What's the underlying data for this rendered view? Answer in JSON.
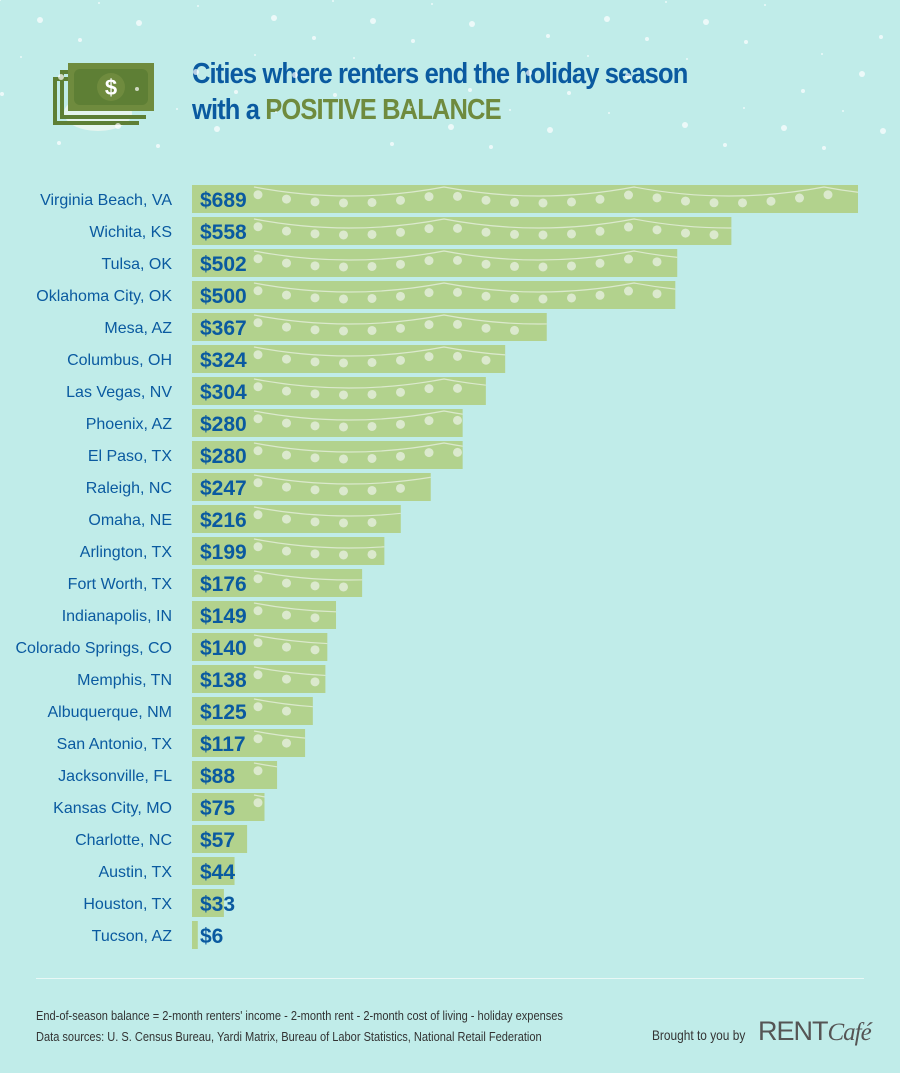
{
  "header": {
    "title_line1": "Cities where renters end the holiday season",
    "title_line2_prefix": "with a ",
    "title_highlight": "POSITIVE BALANCE"
  },
  "chart_data": {
    "type": "bar",
    "orientation": "horizontal",
    "title": "Cities where renters end the holiday season with a POSITIVE BALANCE",
    "categories": [
      "Virginia Beach, VA",
      "Wichita, KS",
      "Tulsa, OK",
      "Oklahoma City, OK",
      "Mesa, AZ",
      "Columbus, OH",
      "Las Vegas, NV",
      "Phoenix, AZ",
      "El Paso, TX",
      "Raleigh, NC",
      "Omaha, NE",
      "Arlington, TX",
      "Fort Worth, TX",
      "Indianapolis, IN",
      "Colorado Springs, CO",
      "Memphis, TN",
      "Albuquerque, NM",
      "San Antonio, TX",
      "Jacksonville, FL",
      "Kansas City, MO",
      "Charlotte, NC",
      "Austin, TX",
      "Houston, TX",
      "Tucson, AZ"
    ],
    "values": [
      689,
      558,
      502,
      500,
      367,
      324,
      304,
      280,
      280,
      247,
      216,
      199,
      176,
      149,
      140,
      138,
      125,
      117,
      88,
      75,
      57,
      44,
      33,
      6
    ],
    "value_labels": [
      "$689",
      "$558",
      "$502",
      "$500",
      "$367",
      "$324",
      "$304",
      "$280",
      "$280",
      "$247",
      "$216",
      "$199",
      "$176",
      "$149",
      "$140",
      "$138",
      "$125",
      "$117",
      "$88",
      "$75",
      "$57",
      "$44",
      "$33",
      "$6"
    ],
    "xlim": [
      0,
      689
    ],
    "colors": {
      "bar": "#b2d28d",
      "text": "#0a5aa0",
      "bulb": "#dbe9cd"
    }
  },
  "footer": {
    "formula": "End-of-season balance = 2-month renters' income - 2-month rent - 2-month cost of living - holiday expenses",
    "sources": "Data sources: U. S. Census Bureau, Yardi Matrix, Bureau of Labor Statistics, National Retail Federation",
    "brought": "Brought to you by",
    "logo_rent": "RENT",
    "logo_cafe": "Café"
  }
}
